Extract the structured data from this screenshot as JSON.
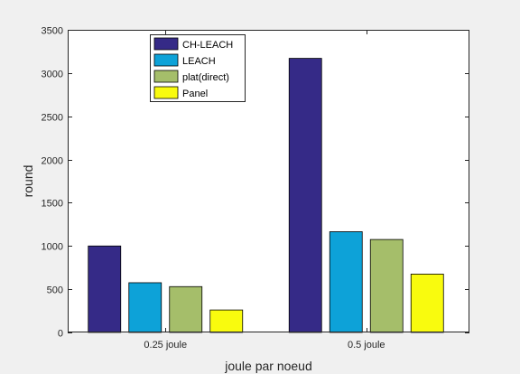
{
  "chart_data": {
    "type": "bar",
    "title": "",
    "xlabel": "joule par noeud",
    "ylabel": "round",
    "ylim": [
      0,
      3500
    ],
    "yticks": [
      0,
      500,
      1000,
      1500,
      2000,
      2500,
      3000,
      3500
    ],
    "categories": [
      "0.25 joule",
      "0.5 joule"
    ],
    "series": [
      {
        "name": "CH-LEACH",
        "color": "#352a87",
        "values": [
          1000,
          3170
        ]
      },
      {
        "name": "LEACH",
        "color": "#0da2d8",
        "values": [
          575,
          1165
        ]
      },
      {
        "name": "plat(direct)",
        "color": "#a5be6a",
        "values": [
          530,
          1075
        ]
      },
      {
        "name": "Panel",
        "color": "#f9fb0e",
        "values": [
          260,
          675
        ]
      }
    ],
    "legend_position": "top-left",
    "grid": false
  }
}
